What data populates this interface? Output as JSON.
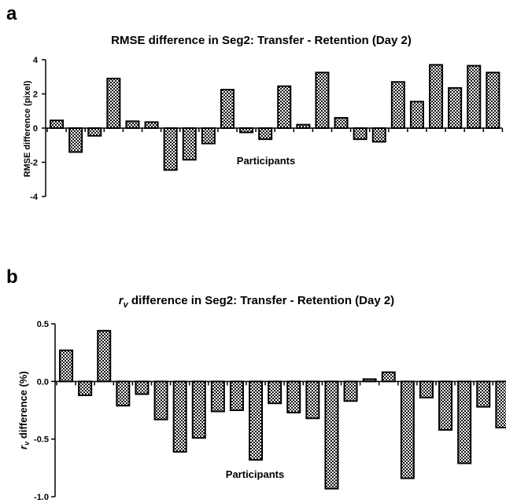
{
  "chart_data": [
    {
      "panel_label": "a",
      "type": "bar",
      "title": "RMSE difference in Seg2: Transfer - Retention (Day 2)",
      "ylabel": "RMSE difference (pixel)",
      "xlabel": "Participants",
      "ylim": [
        -4,
        4
      ],
      "yticks": [
        -4,
        -2,
        0,
        2,
        4
      ],
      "ytick_labels": [
        "-4",
        "-2",
        "0",
        "2",
        "4"
      ],
      "values": [
        0.45,
        -1.4,
        -0.45,
        2.9,
        0.4,
        0.35,
        -2.45,
        -1.85,
        -0.9,
        2.25,
        -0.25,
        -0.65,
        2.45,
        0.2,
        3.25,
        0.6,
        -0.65,
        -0.8,
        2.7,
        1.55,
        3.7,
        2.35,
        3.65,
        3.25
      ]
    },
    {
      "panel_label": "b",
      "type": "bar",
      "title_symbol": "r",
      "title_subscript": "v",
      "title": " difference in Seg2: Transfer - Retention (Day 2)",
      "ylabel_symbol": "r",
      "ylabel_subscript": "v",
      "ylabel": " difference (%)",
      "xlabel": "Participants",
      "ylim": [
        -1.0,
        0.5
      ],
      "yticks": [
        -1.0,
        -0.5,
        0.0,
        0.5
      ],
      "ytick_labels": [
        "-1.0",
        "-0.5",
        "0.0",
        "0.5"
      ],
      "values": [
        0.27,
        -0.12,
        0.44,
        -0.21,
        -0.11,
        -0.33,
        -0.61,
        -0.49,
        -0.26,
        -0.25,
        -0.68,
        -0.19,
        -0.27,
        -0.32,
        -0.93,
        -0.17,
        0.02,
        0.08,
        -0.84,
        -0.14,
        -0.42,
        -0.71,
        -0.22,
        -0.4
      ]
    }
  ]
}
